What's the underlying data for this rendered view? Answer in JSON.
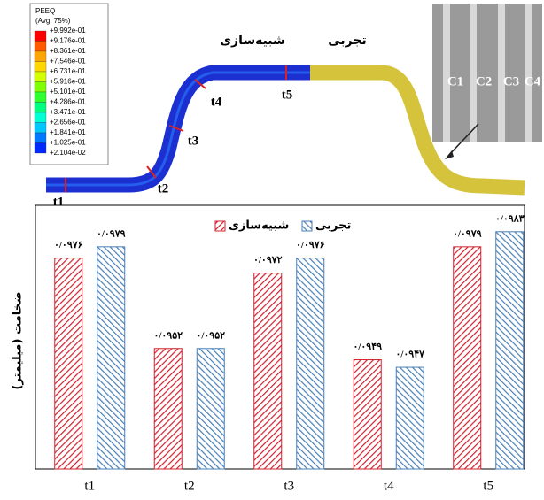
{
  "figure": {
    "contour_legend": {
      "title": "PEEQ",
      "subtitle": "(Avg: 75%)",
      "levels": [
        "+9.992e-01",
        "+9.176e-01",
        "+8.361e-01",
        "+7.546e-01",
        "+6.731e-01",
        "+5.916e-01",
        "+5.101e-01",
        "+4.286e-01",
        "+3.471e-01",
        "+2.656e-01",
        "+1.841e-01",
        "+1.025e-01",
        "+2.104e-02"
      ],
      "colors": [
        "#ff0000",
        "#ff5a00",
        "#ffa500",
        "#ffd700",
        "#d4ff00",
        "#7fff00",
        "#2eff2e",
        "#00ff7f",
        "#00ffd4",
        "#00c8ff",
        "#0078ff",
        "#0028ff"
      ]
    },
    "section_labels": [
      "t1",
      "t2",
      "t3",
      "t4",
      "t5"
    ],
    "simulation_label": "شبیه‌سازی",
    "experiment_label": "تجربی",
    "image_labels": [
      "C1",
      "C2",
      "C3",
      "C4"
    ]
  },
  "chart_data": {
    "type": "bar",
    "ylabel": "ضخامت (میلیمتر)",
    "categories": [
      "t1",
      "t2",
      "t3",
      "t4",
      "t5"
    ],
    "series": [
      {
        "name": "شبیه‌سازی",
        "color": "#d0202e",
        "values": [
          0.0976,
          0.0952,
          0.0972,
          0.0949,
          0.0979
        ],
        "value_labels": [
          "۰/۰۹۷۶",
          "۰/۰۹۵۲",
          "۰/۰۹۷۲",
          "۰/۰۹۴۹",
          "۰/۰۹۷۹"
        ]
      },
      {
        "name": "تجربی",
        "color": "#4a7fb5",
        "values": [
          0.0979,
          0.0952,
          0.0976,
          0.0947,
          0.0983
        ],
        "value_labels": [
          "۰/۰۹۷۹",
          "۰/۰۹۵۲",
          "۰/۰۹۷۶",
          "۰/۰۹۴۷",
          "۰/۰۹۸۳"
        ]
      }
    ],
    "ylim": [
      0.092,
      0.099
    ]
  }
}
